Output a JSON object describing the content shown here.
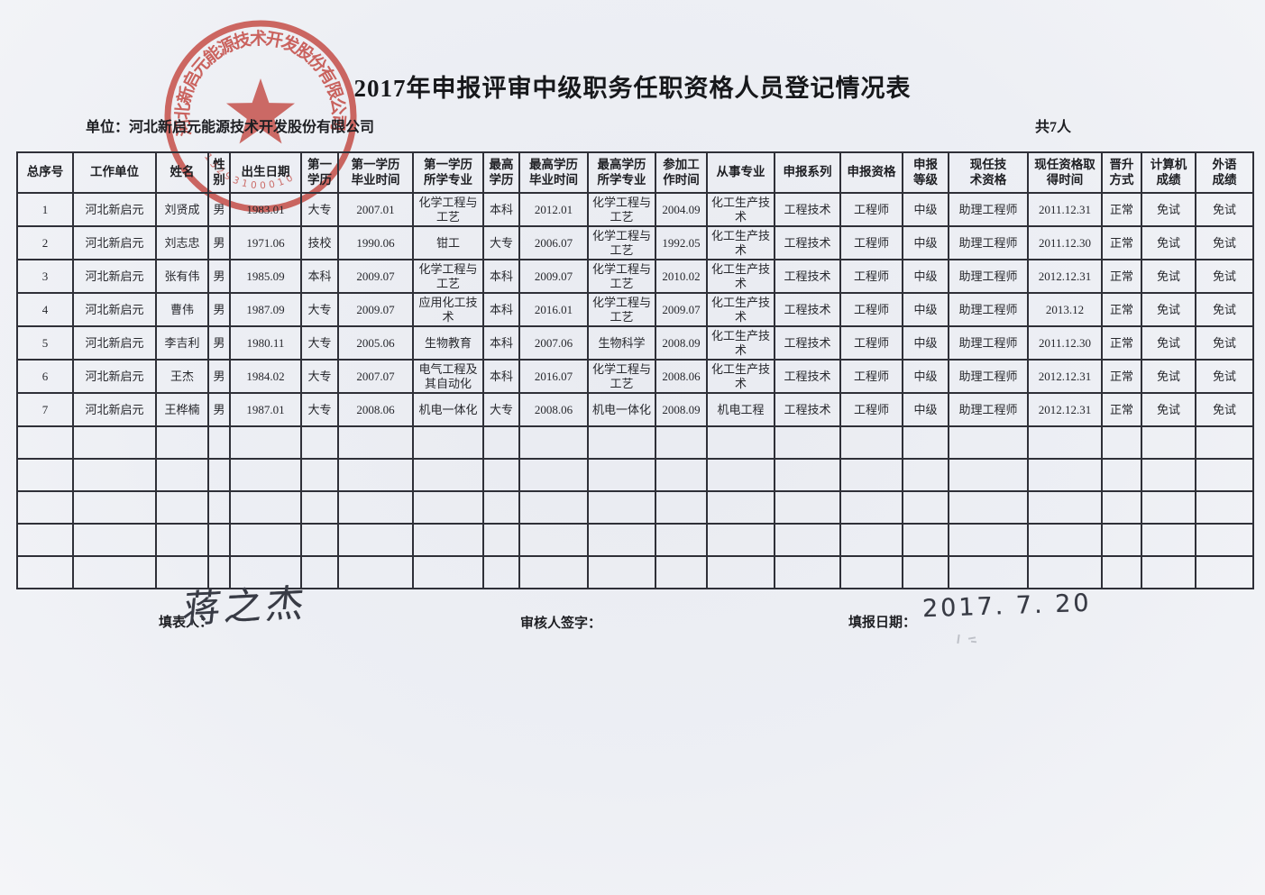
{
  "page": {
    "title": "2017年申报评审中级职务任职资格人员登记情况表",
    "unit_label": "单位：河北新启元能源技术开发股份有限公司",
    "total_label": "共7人"
  },
  "seal": {
    "company": "河北新启元能源技术开发股份有限公司",
    "number": "13293100010",
    "color": "#cc372e"
  },
  "table": {
    "headers": [
      "总序号",
      "工作单位",
      "姓名",
      "性\n别",
      "出生日期",
      "第一\n学历",
      "第一学历\n毕业时间",
      "第一学历\n所学专业",
      "最高\n学历",
      "最高学历\n毕业时间",
      "最高学历\n所学专业",
      "参加工\n作时间",
      "从事专业",
      "申报系列",
      "申报资格",
      "申报\n等级",
      "现任技\n术资格",
      "现任资格取\n得时间",
      "晋升\n方式",
      "计算机\n成绩",
      "外语\n成绩"
    ],
    "rows": [
      [
        "1",
        "河北新启元",
        "刘贤成",
        "男",
        "1983.01",
        "大专",
        "2007.01",
        "化学工程与工艺",
        "本科",
        "2012.01",
        "化学工程与工艺",
        "2004.09",
        "化工生产技术",
        "工程技术",
        "工程师",
        "中级",
        "助理工程师",
        "2011.12.31",
        "正常",
        "免试",
        "免试"
      ],
      [
        "2",
        "河北新启元",
        "刘志忠",
        "男",
        "1971.06",
        "技校",
        "1990.06",
        "钳工",
        "大专",
        "2006.07",
        "化学工程与工艺",
        "1992.05",
        "化工生产技术",
        "工程技术",
        "工程师",
        "中级",
        "助理工程师",
        "2011.12.30",
        "正常",
        "免试",
        "免试"
      ],
      [
        "3",
        "河北新启元",
        "张有伟",
        "男",
        "1985.09",
        "本科",
        "2009.07",
        "化学工程与工艺",
        "本科",
        "2009.07",
        "化学工程与工艺",
        "2010.02",
        "化工生产技术",
        "工程技术",
        "工程师",
        "中级",
        "助理工程师",
        "2012.12.31",
        "正常",
        "免试",
        "免试"
      ],
      [
        "4",
        "河北新启元",
        "曹伟",
        "男",
        "1987.09",
        "大专",
        "2009.07",
        "应用化工技术",
        "本科",
        "2016.01",
        "化学工程与工艺",
        "2009.07",
        "化工生产技术",
        "工程技术",
        "工程师",
        "中级",
        "助理工程师",
        "2013.12",
        "正常",
        "免试",
        "免试"
      ],
      [
        "5",
        "河北新启元",
        "李吉利",
        "男",
        "1980.11",
        "大专",
        "2005.06",
        "生物教育",
        "本科",
        "2007.06",
        "生物科学",
        "2008.09",
        "化工生产技术",
        "工程技术",
        "工程师",
        "中级",
        "助理工程师",
        "2011.12.30",
        "正常",
        "免试",
        "免试"
      ],
      [
        "6",
        "河北新启元",
        "王杰",
        "男",
        "1984.02",
        "大专",
        "2007.07",
        "电气工程及其自动化",
        "本科",
        "2016.07",
        "化学工程与工艺",
        "2008.06",
        "化工生产技术",
        "工程技术",
        "工程师",
        "中级",
        "助理工程师",
        "2012.12.31",
        "正常",
        "免试",
        "免试"
      ],
      [
        "7",
        "河北新启元",
        "王桦楠",
        "男",
        "1987.01",
        "大专",
        "2008.06",
        "机电一体化",
        "大专",
        "2008.06",
        "机电一体化",
        "2008.09",
        "机电工程",
        "工程技术",
        "工程师",
        "中级",
        "助理工程师",
        "2012.12.31",
        "正常",
        "免试",
        "免试"
      ]
    ],
    "empty_row_count": 5
  },
  "footer": {
    "preparer_label": "填表人：",
    "preparer_signature": "蒋之杰",
    "reviewer_label": "审核人签字：",
    "date_label": "填报日期：",
    "date_value": "2017. 7. 20"
  }
}
